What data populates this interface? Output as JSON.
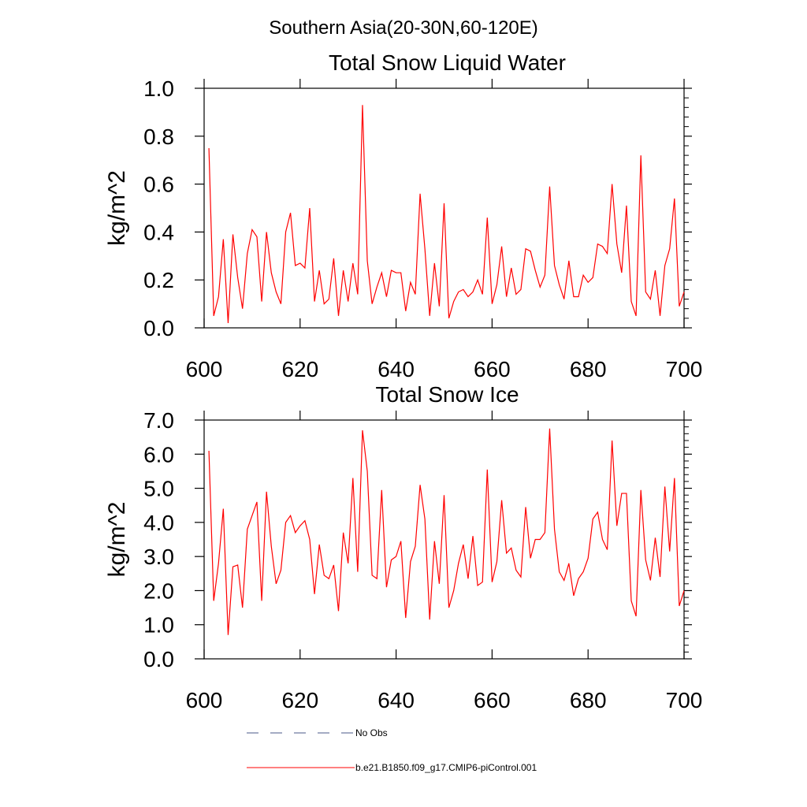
{
  "figure": {
    "region_title": "Southern Asia(20-30N,60-120E)"
  },
  "chart_data": [
    {
      "type": "line",
      "title": "Total Snow Liquid Water",
      "xlabel": "",
      "ylabel": "kg/m^2",
      "xlim": [
        600,
        700
      ],
      "ylim": [
        0,
        1
      ],
      "x_ticks": [
        600,
        620,
        640,
        660,
        680,
        700
      ],
      "y_ticks": [
        0,
        0.2,
        0.4,
        0.6,
        0.8,
        1.0
      ],
      "y_tick_labels": [
        "0.0",
        "0.2",
        "0.4",
        "0.6",
        "0.8",
        "1.0"
      ],
      "grid": false,
      "series": [
        {
          "name": "b.e21.B1850.f09_g17.CMIP6-piControl.001",
          "color": "#ff0000",
          "x_start": 601,
          "x_step": 1,
          "values": [
            0.75,
            0.05,
            0.13,
            0.37,
            0.02,
            0.39,
            0.21,
            0.08,
            0.31,
            0.41,
            0.38,
            0.11,
            0.4,
            0.23,
            0.15,
            0.1,
            0.4,
            0.48,
            0.26,
            0.27,
            0.25,
            0.5,
            0.11,
            0.24,
            0.1,
            0.12,
            0.29,
            0.05,
            0.24,
            0.11,
            0.27,
            0.14,
            0.93,
            0.28,
            0.1,
            0.17,
            0.23,
            0.13,
            0.24,
            0.23,
            0.23,
            0.07,
            0.19,
            0.14,
            0.56,
            0.33,
            0.05,
            0.27,
            0.09,
            0.52,
            0.04,
            0.11,
            0.15,
            0.16,
            0.13,
            0.15,
            0.2,
            0.14,
            0.46,
            0.1,
            0.18,
            0.34,
            0.13,
            0.25,
            0.14,
            0.16,
            0.33,
            0.32,
            0.24,
            0.17,
            0.22,
            0.59,
            0.26,
            0.18,
            0.12,
            0.28,
            0.13,
            0.13,
            0.22,
            0.19,
            0.21,
            0.35,
            0.34,
            0.31,
            0.6,
            0.35,
            0.23,
            0.51,
            0.11,
            0.05,
            0.72,
            0.15,
            0.12,
            0.24,
            0.05,
            0.26,
            0.33,
            0.54,
            0.09,
            0.15
          ]
        }
      ]
    },
    {
      "type": "line",
      "title": "Total Snow Ice",
      "xlabel": "",
      "ylabel": "kg/m^2",
      "xlim": [
        600,
        700
      ],
      "ylim": [
        0,
        7
      ],
      "x_ticks": [
        600,
        620,
        640,
        660,
        680,
        700
      ],
      "y_ticks": [
        0,
        1,
        2,
        3,
        4,
        5,
        6,
        7
      ],
      "y_tick_labels": [
        "0.0",
        "1.0",
        "2.0",
        "3.0",
        "4.0",
        "5.0",
        "6.0",
        "7.0"
      ],
      "grid": false,
      "series": [
        {
          "name": "b.e21.B1850.f09_g17.CMIP6-piControl.001",
          "color": "#ff0000",
          "x_start": 601,
          "x_step": 1,
          "values": [
            6.1,
            1.7,
            2.8,
            4.4,
            0.7,
            2.7,
            2.75,
            1.5,
            3.8,
            4.2,
            4.6,
            1.7,
            4.9,
            3.3,
            2.2,
            2.6,
            4.0,
            4.2,
            3.7,
            3.9,
            4.05,
            3.5,
            1.9,
            3.35,
            2.45,
            2.35,
            2.75,
            1.4,
            3.7,
            2.8,
            5.3,
            2.55,
            6.7,
            5.5,
            2.45,
            2.35,
            4.95,
            2.1,
            2.9,
            3.0,
            3.45,
            1.2,
            2.85,
            3.3,
            5.1,
            4.1,
            1.15,
            3.45,
            2.2,
            4.8,
            1.5,
            2.0,
            2.8,
            3.35,
            2.35,
            3.6,
            2.15,
            2.25,
            5.55,
            2.25,
            2.85,
            4.65,
            3.1,
            3.25,
            2.6,
            2.4,
            4.45,
            2.95,
            3.5,
            3.5,
            3.7,
            6.75,
            3.8,
            2.55,
            2.3,
            2.8,
            1.85,
            2.35,
            2.55,
            2.95,
            4.1,
            4.3,
            3.5,
            3.2,
            6.4,
            3.9,
            4.85,
            4.85,
            1.7,
            1.25,
            4.95,
            2.9,
            2.3,
            3.55,
            2.4,
            5.05,
            3.15,
            5.3,
            1.55,
            2.0
          ]
        }
      ]
    }
  ],
  "legend": {
    "placement": "bottom-left",
    "entries": [
      {
        "label": "No Obs",
        "color": "#4a5a8a",
        "style": "dashed"
      },
      {
        "label": "b.e21.B1850.f09_g17.CMIP6-piControl.001",
        "color": "#ff0000",
        "style": "solid"
      }
    ]
  }
}
